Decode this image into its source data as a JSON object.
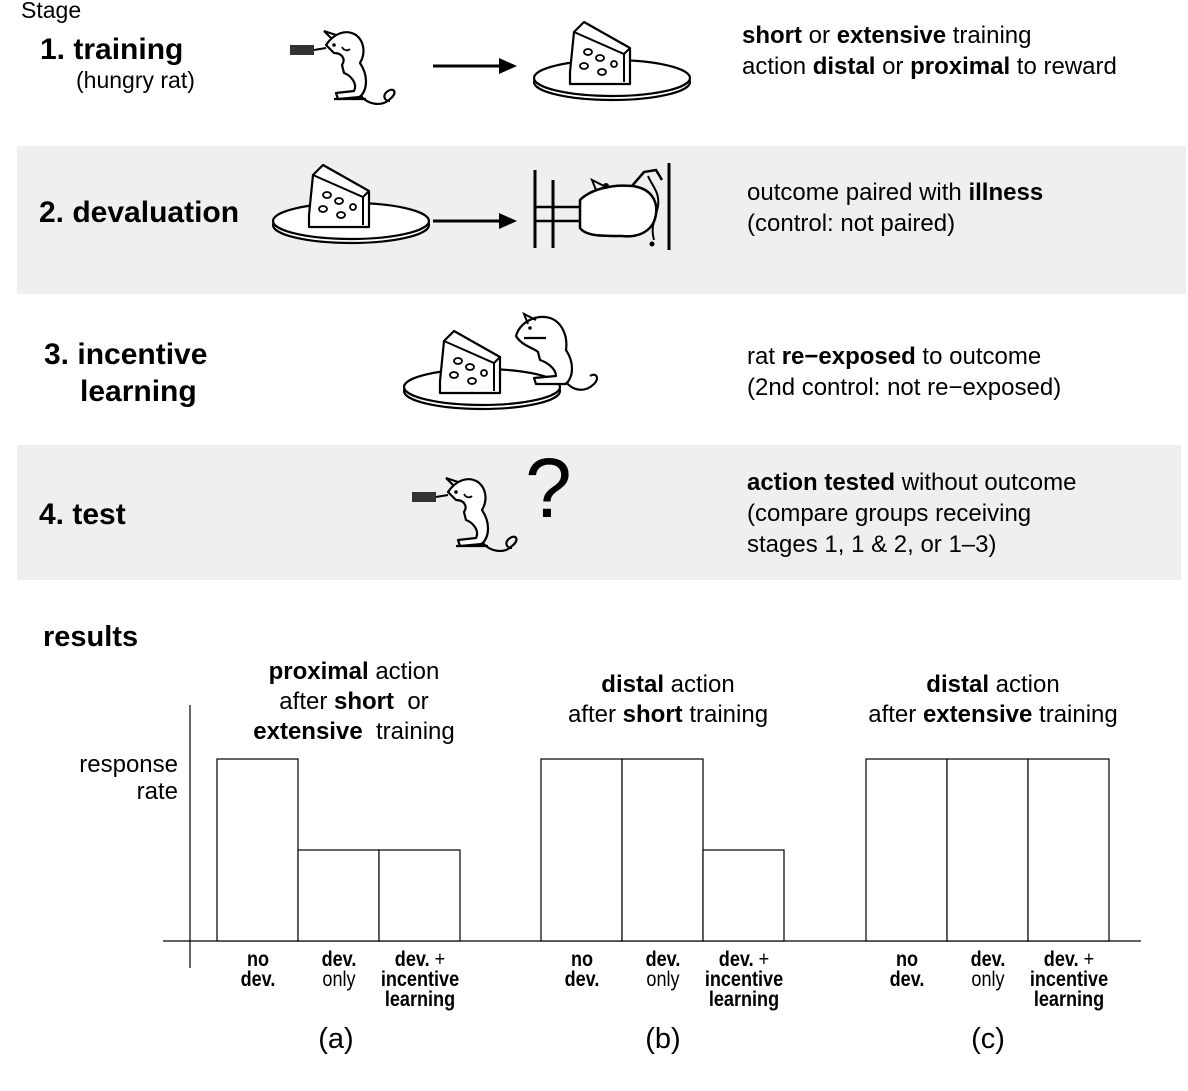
{
  "header": {
    "stage_label": "Stage"
  },
  "stages": [
    {
      "title": "1. training",
      "subtitle": "(hungry rat)",
      "desc_lines": [
        [
          [
            "b",
            "short"
          ],
          [
            "n",
            " or "
          ],
          [
            "b",
            "extensive"
          ],
          [
            "n",
            " training"
          ]
        ],
        [
          [
            "n",
            "action "
          ],
          [
            "b",
            "distal"
          ],
          [
            "n",
            " or "
          ],
          [
            "b",
            "proximal"
          ],
          [
            "n",
            " to reward"
          ]
        ]
      ]
    },
    {
      "title": "2. devaluation",
      "desc_lines": [
        [
          [
            "n",
            "outcome paired with "
          ],
          [
            "b",
            "illness"
          ]
        ],
        [
          [
            "n",
            "(control: not paired)"
          ]
        ]
      ]
    },
    {
      "title_line1": "3. incentive",
      "title_line2": "learning",
      "desc_lines": [
        [
          [
            "n",
            "rat "
          ],
          [
            "b",
            "re−exposed"
          ],
          [
            "n",
            " to outcome"
          ]
        ],
        [
          [
            "n",
            "(2nd control: not re−exposed)"
          ]
        ]
      ]
    },
    {
      "title": "4. test",
      "question_mark": "?",
      "desc_lines": [
        [
          [
            "b",
            "action tested"
          ],
          [
            "n",
            " without outcome"
          ]
        ],
        [
          [
            "n",
            "(compare groups receiving"
          ]
        ],
        [
          [
            "n",
            "stages 1, 1 & 2, or 1–3)"
          ]
        ]
      ]
    }
  ],
  "icons": {
    "stage1": [
      "rat-pressing-lever-icon",
      "arrow-right-icon",
      "cheese-on-plate-icon"
    ],
    "stage2": [
      "cheese-on-plate-icon",
      "arrow-right-icon",
      "sick-rat-in-cage-icon"
    ],
    "stage3": [
      "rat-eating-cheese-icon"
    ],
    "stage4": [
      "rat-pressing-lever-icon"
    ]
  },
  "results": {
    "title": "results",
    "y_axis_label_line1": "response",
    "y_axis_label_line2": "rate",
    "panels": [
      {
        "label": "(a)",
        "title_lines": [
          [
            [
              "b",
              "proximal"
            ],
            [
              "n",
              " action"
            ]
          ],
          [
            [
              "n",
              "after "
            ],
            [
              "b",
              "short"
            ],
            [
              "n",
              "  or"
            ]
          ],
          [
            [
              "b",
              "extensive"
            ],
            [
              "n",
              "  training"
            ]
          ]
        ]
      },
      {
        "label": "(b)",
        "title_lines": [
          [
            [
              "b",
              "distal"
            ],
            [
              "n",
              " action"
            ]
          ],
          [
            [
              "n",
              "after "
            ],
            [
              "b",
              "short"
            ],
            [
              "n",
              " training"
            ]
          ]
        ]
      },
      {
        "label": "(c)",
        "title_lines": [
          [
            [
              "b",
              "distal"
            ],
            [
              "n",
              " action"
            ]
          ],
          [
            [
              "n",
              "after "
            ],
            [
              "b",
              "extensive"
            ],
            [
              "n",
              " training"
            ]
          ]
        ]
      }
    ],
    "bar_labels": [
      [
        [
          "b",
          "no"
        ]
      ],
      [
        [
          "b",
          "dev."
        ]
      ],
      [
        [
          "b",
          "dev."
        ]
      ],
      [
        [
          "n",
          "only"
        ]
      ],
      [
        [
          "b",
          "dev."
        ],
        [
          "n",
          " +"
        ]
      ],
      [
        [
          "b",
          "incentive"
        ]
      ],
      [
        [
          "b",
          "learning"
        ]
      ]
    ]
  },
  "chart_data": {
    "type": "bar",
    "categories": [
      "no dev.",
      "dev. only",
      "dev. + incentive learning"
    ],
    "ylabel": "response rate",
    "xlabel": "",
    "series": [
      {
        "name": "proximal action after short or extensive training",
        "values": [
          1.0,
          0.5,
          0.5
        ]
      },
      {
        "name": "distal action after short training",
        "values": [
          1.0,
          1.0,
          0.5
        ]
      },
      {
        "name": "distal action after extensive training",
        "values": [
          1.0,
          1.0,
          1.0
        ]
      }
    ],
    "ylim": [
      0,
      1.0
    ],
    "grid": false,
    "legend": "none"
  }
}
